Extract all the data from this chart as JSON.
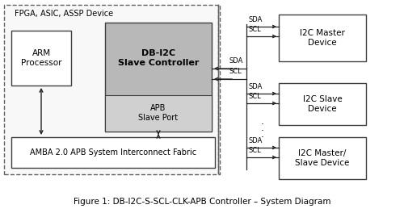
{
  "fig_width": 5.0,
  "fig_height": 2.64,
  "dpi": 100,
  "bg_color": "#ffffff",
  "caption": "Figure 1: DB-I2C-S-SCL-CLK-APB Controller – System Diagram",
  "fpga_label": "FPGA, ASIC, ASSP Device",
  "arm_label": "ARM\nProcessor",
  "amba_label": "AMBA 2.0 APB System Interconnect Fabric",
  "db_label": "DB-I2C\nSlave Controller",
  "apb_label": "APB\nSlave Port",
  "dev1_label": "I2C Master\nDevice",
  "dev2_label": "I2C Slave\nDevice",
  "dev3_label": "I2C Master/\nSlave Device",
  "gray_fill": "#b8b8b8",
  "apb_fill": "#d0d0d0",
  "white_fill": "#ffffff",
  "box_ec": "#404040",
  "dashed_ec": "#606060",
  "arrow_color": "#222222"
}
